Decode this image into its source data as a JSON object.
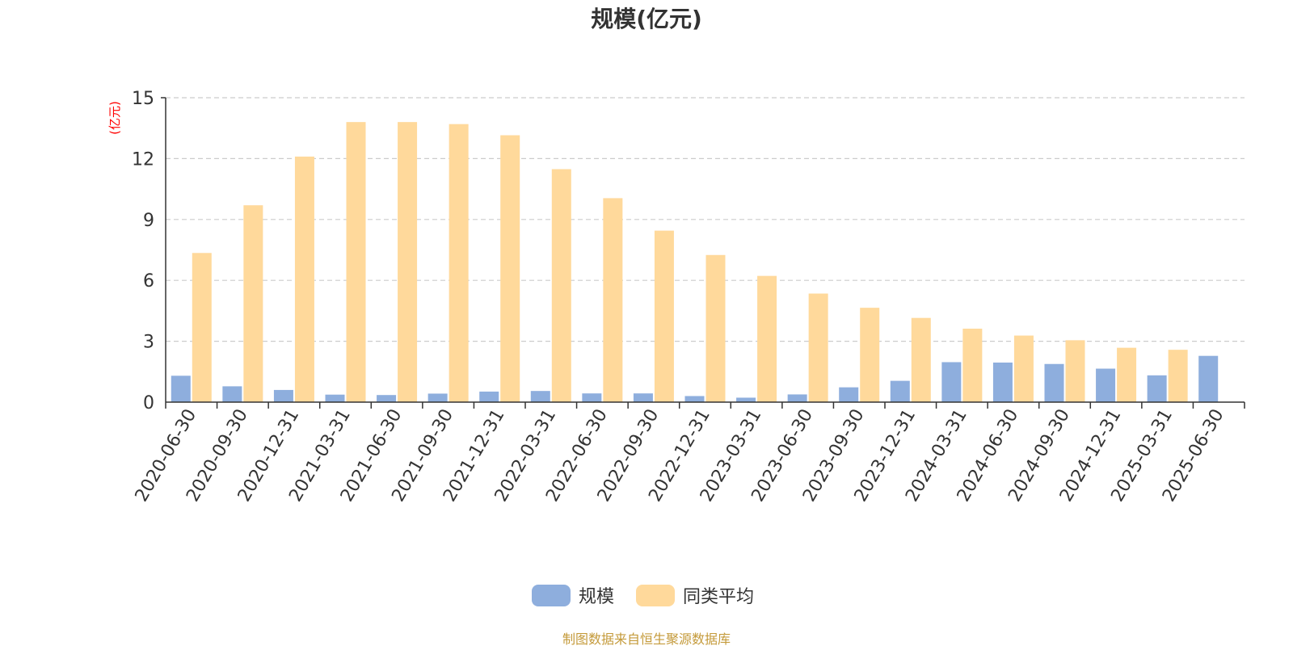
{
  "colors": {
    "series_scale": "#8eaedd",
    "series_peer": "#ffd99b",
    "unit_label": "#ff0000",
    "source_text": "#c49a3a",
    "axis": "#333333",
    "grid": "#cccccc",
    "text": "#333333"
  },
  "source_note": "制图数据来自恒生聚源数据库",
  "chart_data": {
    "type": "bar",
    "title": "规模(亿元)",
    "xlabel": "",
    "ylabel": "(亿元)",
    "ylim": [
      0,
      15
    ],
    "yticks": [
      "0",
      "3",
      "6",
      "9",
      "12",
      "15"
    ],
    "grid": "horizontal-dashed",
    "legend_placement": "bottom-center",
    "categories": [
      "2020-06-30",
      "2020-09-30",
      "2020-12-31",
      "2021-03-31",
      "2021-06-30",
      "2021-09-30",
      "2021-12-31",
      "2022-03-31",
      "2022-06-30",
      "2022-09-30",
      "2022-12-31",
      "2023-03-31",
      "2023-06-30",
      "2023-09-30",
      "2023-12-31",
      "2024-03-31",
      "2024-06-30",
      "2024-09-30",
      "2024-12-31",
      "2025-03-31",
      "2025-06-30"
    ],
    "series": [
      {
        "name": "规模",
        "values": [
          1.3,
          0.78,
          0.6,
          0.37,
          0.35,
          0.42,
          0.52,
          0.55,
          0.43,
          0.43,
          0.3,
          0.22,
          0.38,
          0.73,
          1.05,
          1.97,
          1.95,
          1.88,
          1.65,
          1.32,
          2.28
        ]
      },
      {
        "name": "同类平均",
        "values": [
          7.35,
          9.7,
          12.1,
          13.8,
          13.8,
          13.7,
          13.15,
          11.48,
          10.05,
          8.45,
          7.25,
          6.22,
          5.35,
          4.65,
          4.15,
          3.62,
          3.28,
          3.05,
          2.68,
          2.58,
          null
        ]
      }
    ]
  }
}
